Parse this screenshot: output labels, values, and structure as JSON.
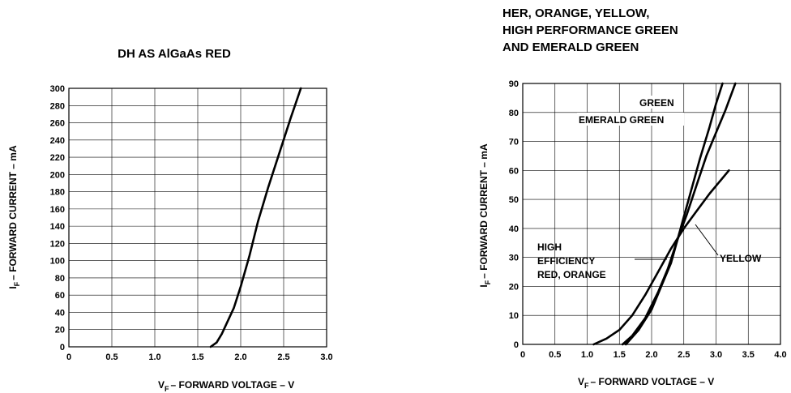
{
  "chart_data": [
    {
      "type": "line",
      "title": "DH AS AlGaAs RED",
      "xlabel_main": "V",
      "xlabel_sub": "F",
      "xlabel_rest": "– FORWARD VOLTAGE – V",
      "ylabel_main": "I",
      "ylabel_sub": "F",
      "ylabel_rest": "– FORWARD CURRENT – mA",
      "xlim": [
        0,
        3.0
      ],
      "ylim": [
        0,
        300
      ],
      "grid": true,
      "x_ticks": [
        "0",
        "0.5",
        "1.0",
        "1.5",
        "2.0",
        "2.5",
        "3.0"
      ],
      "y_ticks": [
        "0",
        "20",
        "40",
        "60",
        "80",
        "100",
        "120",
        "140",
        "160",
        "180",
        "200",
        "220",
        "240",
        "260",
        "280",
        "300"
      ],
      "series": [
        {
          "x": [
            1.65,
            1.72,
            1.78,
            1.85,
            1.92,
            2.0,
            2.1,
            2.2,
            2.32,
            2.45,
            2.58,
            2.7
          ],
          "y": [
            0,
            5,
            15,
            30,
            45,
            70,
            105,
            145,
            185,
            225,
            265,
            300
          ]
        }
      ],
      "annotations": []
    },
    {
      "type": "line",
      "title_lines": [
        "HER, ORANGE, YELLOW,",
        "HIGH PERFORMANCE GREEN",
        "AND EMERALD GREEN"
      ],
      "xlabel_main": "V",
      "xlabel_sub": "F",
      "xlabel_rest": "– FORWARD VOLTAGE – V",
      "ylabel_main": "I",
      "ylabel_sub": "F",
      "ylabel_rest": "– FORWARD CURRENT – mA",
      "xlim": [
        0,
        4.0
      ],
      "ylim": [
        0,
        90
      ],
      "grid": true,
      "x_ticks": [
        "0",
        "0.5",
        "1.0",
        "1.5",
        "2.0",
        "2.5",
        "3.0",
        "3.5",
        "4.0"
      ],
      "y_ticks": [
        "0",
        "10",
        "20",
        "30",
        "40",
        "50",
        "60",
        "70",
        "80",
        "90"
      ],
      "series": [
        {
          "x": [
            1.55,
            1.7,
            1.9,
            2.1,
            2.25,
            2.4,
            2.55,
            2.7,
            2.85,
            3.0,
            3.15,
            3.3
          ],
          "y": [
            0,
            3,
            9,
            18,
            26,
            36,
            45,
            55,
            65,
            73,
            81,
            90
          ]
        },
        {
          "x": [
            1.6,
            1.8,
            2.0,
            2.15,
            2.3,
            2.45,
            2.6,
            2.75,
            2.9,
            3.0,
            3.1
          ],
          "y": [
            0,
            5,
            12,
            20,
            28,
            40,
            52,
            64,
            75,
            83,
            90
          ]
        },
        {
          "x": [
            1.1,
            1.3,
            1.5,
            1.7,
            1.9,
            2.1,
            2.3,
            2.5,
            2.7,
            2.9,
            3.05,
            3.2
          ],
          "y": [
            0,
            2,
            5,
            10,
            17,
            25,
            33,
            40,
            46,
            52,
            56,
            60
          ]
        }
      ],
      "annotations": [
        {
          "text": "GREEN"
        },
        {
          "text": "EMERALD GREEN"
        },
        {
          "text": "YELLOW"
        },
        {
          "text": "HIGH"
        },
        {
          "text": "EFFICIENCY"
        },
        {
          "text": "RED, ORANGE"
        }
      ]
    }
  ]
}
